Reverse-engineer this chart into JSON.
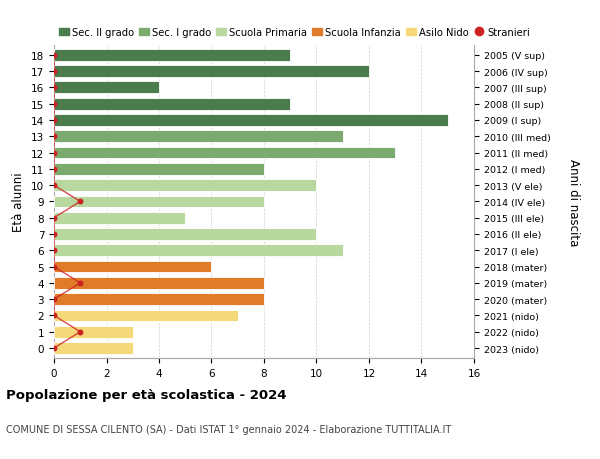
{
  "ages": [
    18,
    17,
    16,
    15,
    14,
    13,
    12,
    11,
    10,
    9,
    8,
    7,
    6,
    5,
    4,
    3,
    2,
    1,
    0
  ],
  "years": [
    "2005 (V sup)",
    "2006 (IV sup)",
    "2007 (III sup)",
    "2008 (II sup)",
    "2009 (I sup)",
    "2010 (III med)",
    "2011 (II med)",
    "2012 (I med)",
    "2013 (V ele)",
    "2014 (IV ele)",
    "2015 (III ele)",
    "2016 (II ele)",
    "2017 (I ele)",
    "2018 (mater)",
    "2019 (mater)",
    "2020 (mater)",
    "2021 (nido)",
    "2022 (nido)",
    "2023 (nido)"
  ],
  "values": [
    9,
    12,
    4,
    9,
    15,
    11,
    13,
    8,
    10,
    8,
    5,
    10,
    11,
    6,
    8,
    8,
    7,
    3,
    3
  ],
  "stranieri": [
    0,
    0,
    0,
    0,
    0,
    0,
    0,
    0,
    0,
    1,
    0,
    0,
    0,
    0,
    1,
    0,
    0,
    1,
    0
  ],
  "bar_colors": [
    "#4a7c4e",
    "#4a7c4e",
    "#4a7c4e",
    "#4a7c4e",
    "#4a7c4e",
    "#7aaa6e",
    "#7aaa6e",
    "#7aaa6e",
    "#b8d8a0",
    "#b8d8a0",
    "#b8d8a0",
    "#b8d8a0",
    "#b8d8a0",
    "#e07b2a",
    "#e07b2a",
    "#e07b2a",
    "#f5d87a",
    "#f5d87a",
    "#f5d87a"
  ],
  "legend_labels": [
    "Sec. II grado",
    "Sec. I grado",
    "Scuola Primaria",
    "Scuola Infanzia",
    "Asilo Nido",
    "Stranieri"
  ],
  "legend_colors": [
    "#4a7c4e",
    "#7aaa6e",
    "#b8d8a0",
    "#e07b2a",
    "#f5d87a",
    "#cc2222"
  ],
  "title": "Popolazione per età scolastica - 2024",
  "subtitle": "COMUNE DI SESSA CILENTO (SA) - Dati ISTAT 1° gennaio 2024 - Elaborazione TUTTITALIA.IT",
  "ylabel": "Età alunni",
  "ylabel2": "Anni di nascita",
  "xlim": [
    0,
    16
  ],
  "xticks": [
    0,
    2,
    4,
    6,
    8,
    10,
    12,
    14,
    16
  ],
  "bg_color": "#ffffff",
  "grid_color": "#cccccc",
  "stranieri_color": "#cc2222"
}
